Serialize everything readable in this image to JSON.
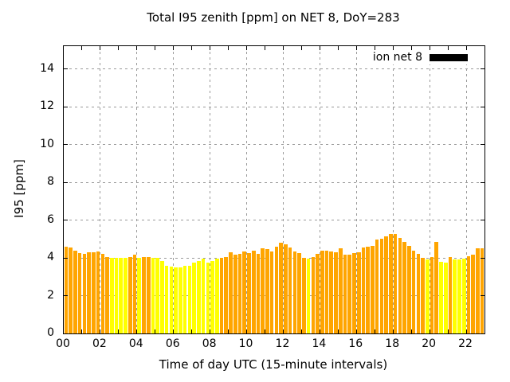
{
  "chart_data": {
    "type": "bar",
    "title": "Total I95 zenith [ppm] on NET 8, DoY=283",
    "xlabel": "Time of day UTC (15-minute intervals)",
    "ylabel": "I95 [ppm]",
    "legend": {
      "label": "ion net 8",
      "swatch_color": "#000000",
      "position": "top-right-inside"
    },
    "grid": "dashed",
    "x_tick_labels": [
      "00",
      "02",
      "04",
      "06",
      "08",
      "10",
      "12",
      "14",
      "16",
      "18",
      "20",
      "22"
    ],
    "x_hours_range": [
      0,
      23
    ],
    "x_minor_tick_every_hours": 1,
    "y_ticks": [
      0,
      2,
      4,
      6,
      8,
      10,
      12,
      14
    ],
    "ylim": [
      0,
      15.2
    ],
    "interval_minutes": 15,
    "first_bar_time": "00:00",
    "bar_color_key": {
      "O": "#ffa500",
      "Y": "#ffff00"
    },
    "bar_colors": [
      "O",
      "O",
      "O",
      "O",
      "O",
      "O",
      "O",
      "O",
      "O",
      "O",
      "Y",
      "Y",
      "Y",
      "Y",
      "O",
      "O",
      "Y",
      "O",
      "O",
      "Y",
      "Y",
      "Y",
      "Y",
      "Y",
      "Y",
      "Y",
      "Y",
      "Y",
      "Y",
      "Y",
      "Y",
      "Y",
      "Y",
      "Y",
      "O",
      "O",
      "O",
      "O",
      "O",
      "O",
      "O",
      "O",
      "O",
      "O",
      "O",
      "O",
      "O",
      "O",
      "O",
      "O",
      "O",
      "O",
      "O",
      "Y",
      "O",
      "O",
      "O",
      "O",
      "O",
      "O",
      "O",
      "O",
      "O",
      "O",
      "O",
      "O",
      "O",
      "O",
      "O",
      "O",
      "O",
      "O",
      "O",
      "O",
      "O",
      "O",
      "O",
      "O",
      "O",
      "Y",
      "O",
      "O",
      "Y",
      "Y",
      "O",
      "Y",
      "Y",
      "Y",
      "O",
      "O",
      "O",
      "O"
    ],
    "values": [
      4.6,
      4.55,
      4.4,
      4.25,
      4.2,
      4.3,
      4.3,
      4.35,
      4.2,
      4.05,
      4.0,
      4.0,
      4.0,
      4.0,
      4.05,
      4.15,
      4.0,
      4.05,
      4.05,
      4.0,
      4.0,
      3.85,
      3.6,
      3.55,
      3.5,
      3.5,
      3.6,
      3.6,
      3.75,
      3.85,
      3.95,
      3.75,
      3.85,
      3.95,
      4.0,
      4.05,
      4.3,
      4.15,
      4.2,
      4.35,
      4.25,
      4.4,
      4.2,
      4.5,
      4.45,
      4.35,
      4.6,
      4.8,
      4.7,
      4.55,
      4.35,
      4.25,
      4.0,
      3.95,
      4.05,
      4.2,
      4.4,
      4.4,
      4.35,
      4.3,
      4.5,
      4.15,
      4.15,
      4.25,
      4.3,
      4.55,
      4.6,
      4.65,
      4.95,
      5.0,
      5.15,
      5.25,
      5.25,
      5.05,
      4.85,
      4.65,
      4.4,
      4.2,
      4.0,
      3.9,
      4.05,
      4.85,
      3.8,
      3.75,
      4.05,
      3.9,
      3.9,
      3.95,
      4.1,
      4.15,
      4.5,
      4.5
    ]
  }
}
